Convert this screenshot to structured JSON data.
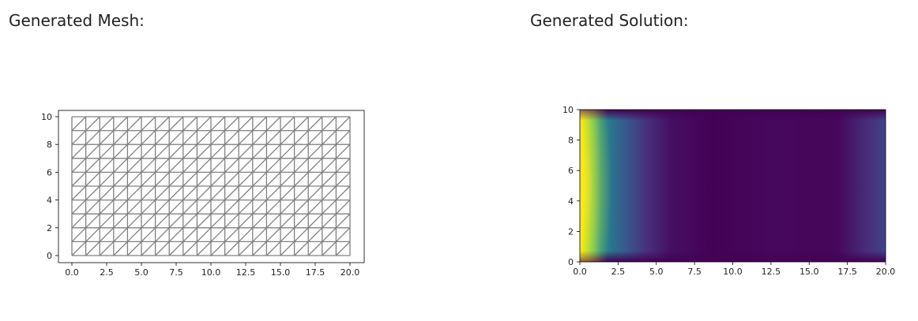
{
  "panels": {
    "mesh_title": "Generated Mesh:",
    "solution_title": "Generated Solution:"
  },
  "chart_data": [
    {
      "type": "mesh",
      "nx": 20,
      "ny": 10,
      "x_range": [
        0,
        20
      ],
      "y_range": [
        0,
        10
      ],
      "x_ticks": [
        "0.0",
        "2.5",
        "5.0",
        "7.5",
        "10.0",
        "12.5",
        "15.0",
        "17.5",
        "20.0"
      ],
      "y_ticks": [
        "0",
        "2",
        "4",
        "6",
        "8",
        "10"
      ],
      "line_color": "#808080"
    },
    {
      "type": "heatmap",
      "x_range": [
        0,
        20
      ],
      "y_range": [
        0,
        10
      ],
      "x_ticks": [
        "0.0",
        "2.5",
        "5.0",
        "7.5",
        "10.0",
        "12.5",
        "15.0",
        "17.5",
        "20.0"
      ],
      "y_ticks": [
        "0",
        "2",
        "4",
        "6",
        "8",
        "10"
      ],
      "colormap": "viridis",
      "left_boundary_color": "#e4e418",
      "background_color": "#46085c"
    }
  ]
}
